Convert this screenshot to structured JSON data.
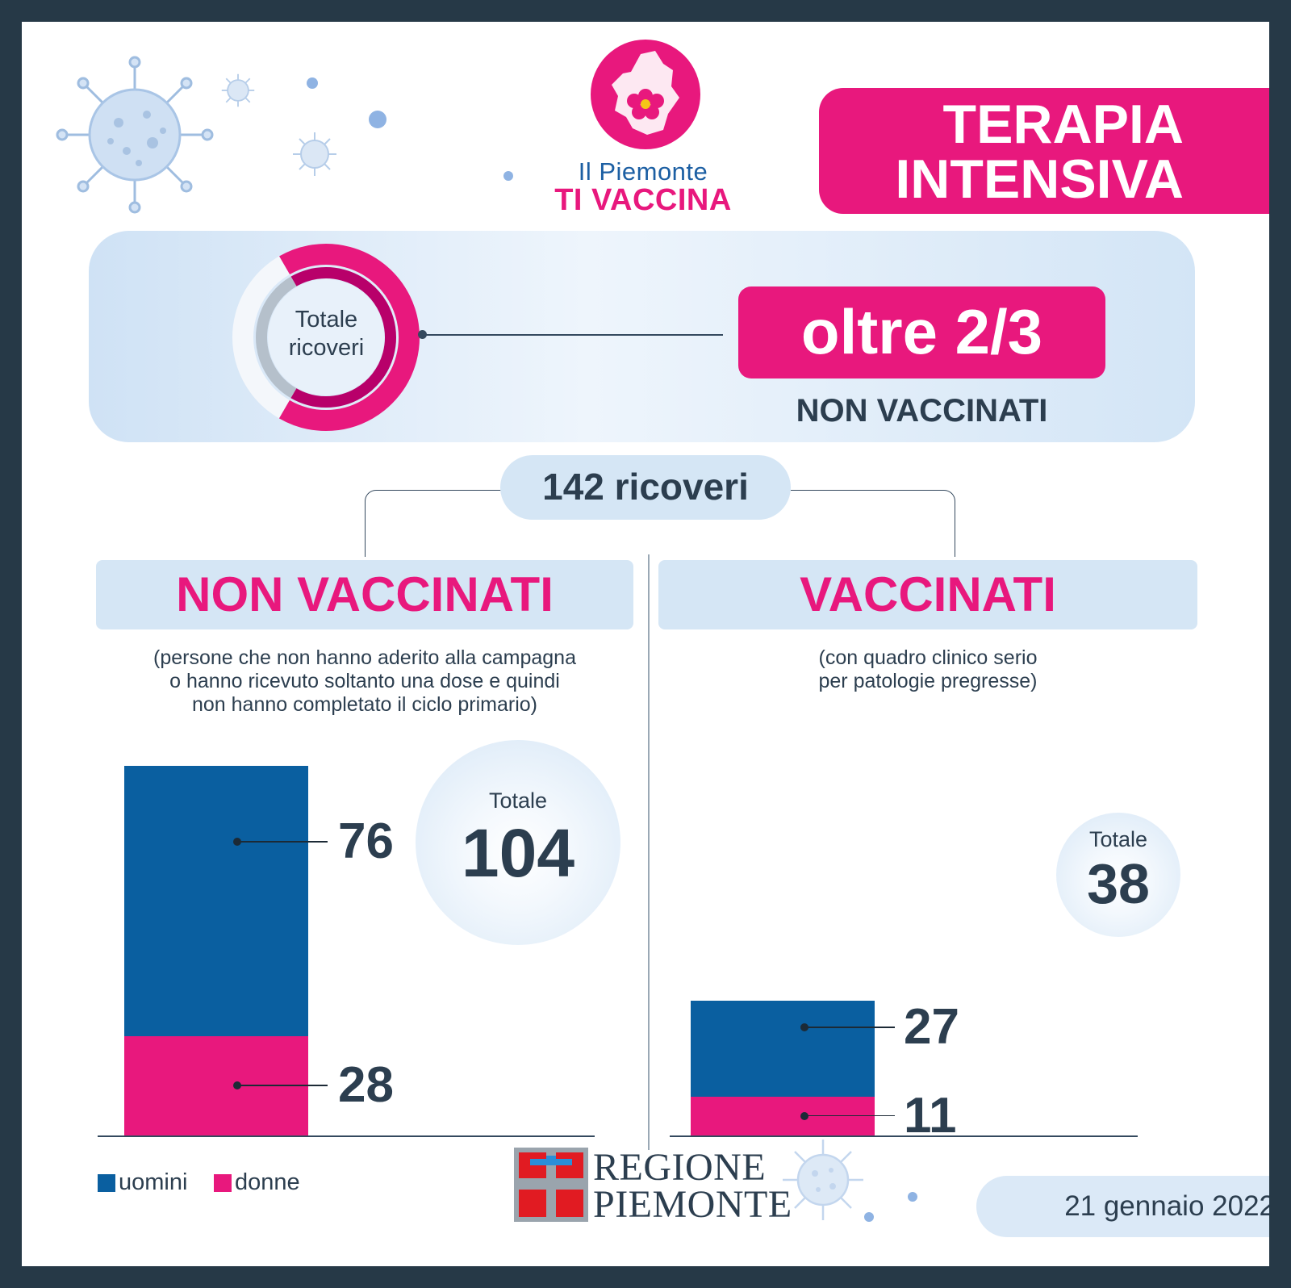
{
  "logo": {
    "line1": "Il Piemonte",
    "line2": "TI VACCINA"
  },
  "title": {
    "line1": "TERAPIA",
    "line2": "INTENSIVA"
  },
  "summary": {
    "donut_label_1": "Totale",
    "donut_label_2": "ricoveri",
    "headline": "oltre 2/3",
    "subtext": "NON VACCINATI"
  },
  "total_ricoveri": "142 ricoveri",
  "colors": {
    "uomini": "#0a5fa0",
    "donne": "#e8187d",
    "accent": "#e8187d",
    "text": "#2c3e4f"
  },
  "chart_data": [
    {
      "type": "bar",
      "stacked": true,
      "title": "NON VACCINATI",
      "note_lines": [
        "(persone che non hanno aderito alla campagna",
        "o hanno ricevuto soltanto una dose e quindi",
        "non hanno completato il ciclo primario)"
      ],
      "series": [
        {
          "name": "uomini",
          "values": [
            76
          ],
          "labels": [
            "76"
          ]
        },
        {
          "name": "donne",
          "values": [
            28
          ],
          "labels": [
            "28"
          ]
        }
      ],
      "total_label": "Totale",
      "total": 104,
      "total_text": "104"
    },
    {
      "type": "bar",
      "stacked": true,
      "title": "VACCINATI",
      "note_lines": [
        "(con quadro clinico serio",
        "per patologie pregresse)"
      ],
      "series": [
        {
          "name": "uomini",
          "values": [
            27
          ],
          "labels": [
            "27"
          ]
        },
        {
          "name": "donne",
          "values": [
            11
          ],
          "labels": [
            "11"
          ]
        }
      ],
      "total_label": "Totale",
      "total": 38,
      "total_text": "38"
    }
  ],
  "legend": [
    {
      "label": "uomini"
    },
    {
      "label": "donne"
    }
  ],
  "footer": {
    "org_line1": "REGIONE",
    "org_line2": "PIEMONTE",
    "date": "21 gennaio 2022"
  }
}
